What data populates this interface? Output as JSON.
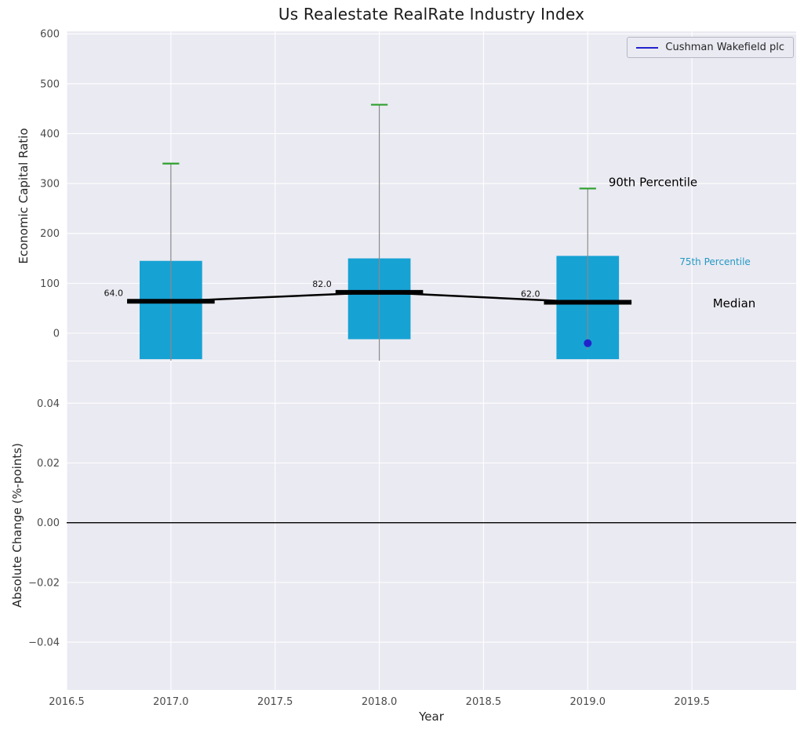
{
  "figure": {
    "title": "Us Realestate RealRate Industry Index",
    "colors": {
      "axes_background": "#eaeaf2",
      "grid": "#ffffff",
      "box_fill": "#17a2d4",
      "cap_green": "#2ca02c",
      "whisker_gray": "#8a8a8a",
      "median_black": "#000000",
      "company_blue": "#2222cc",
      "p75_text": "#2499c4",
      "tick_text": "#4a4a4a"
    }
  },
  "chart_data": [
    {
      "type": "boxplot",
      "title": "Us Realestate RealRate Industry Index",
      "ylabel": "Economic Capital Ratio",
      "xlabel": "",
      "xlim": [
        2016.5,
        2020.0
      ],
      "ylim": [
        -55,
        605
      ],
      "grid": true,
      "legend": {
        "label": "Cushman Wakefield plc",
        "position": "upper right"
      },
      "yticks": {
        "values": [
          0,
          100,
          200,
          300,
          400,
          500,
          600
        ],
        "labels": [
          "0",
          "100",
          "200",
          "300",
          "400",
          "500",
          "600"
        ]
      },
      "xticks": {
        "values": [
          2016.5,
          2017.0,
          2017.5,
          2018.0,
          2018.5,
          2019.0,
          2019.5
        ],
        "labels": []
      },
      "box_width": 0.3,
      "cap_width": 0.08,
      "median_width": 0.42,
      "boxes": [
        {
          "year": 2017,
          "x": 2017.0,
          "q1": -52,
          "q3": 145,
          "median": 64.0,
          "median_label": "64.0",
          "p90": 340,
          "whisker_low": -55
        },
        {
          "year": 2018,
          "x": 2018.0,
          "q1": -12,
          "q3": 150,
          "median": 82.0,
          "median_label": "82.0",
          "p90": 458,
          "whisker_low": -55
        },
        {
          "year": 2019,
          "x": 2019.0,
          "q1": -52,
          "q3": 155,
          "median": 62.0,
          "median_label": "62.0",
          "p90": 290,
          "whisker_low": -33
        }
      ],
      "median_line": {
        "x": [
          2017,
          2018,
          2019
        ],
        "y": [
          64,
          82,
          62
        ]
      },
      "company_series": {
        "name": "Cushman Wakefield plc",
        "points": [
          {
            "x": 2019,
            "y": -20
          }
        ]
      },
      "annotations": [
        {
          "text": "90th Percentile",
          "x": 2019.1,
          "y": 295,
          "color": "#000000",
          "size": 15
        },
        {
          "text": "75th Percentile",
          "x": 2019.44,
          "y": 137,
          "color": "#2499c4",
          "size": 12
        },
        {
          "text": "Median",
          "x": 2019.6,
          "y": 52,
          "color": "#000000",
          "size": 15
        }
      ]
    },
    {
      "type": "line",
      "ylabel": "Absolute Change (%-points)",
      "xlabel": "Year",
      "xlim": [
        2016.5,
        2020.0
      ],
      "ylim": [
        -0.056,
        0.054
      ],
      "grid": true,
      "series": [],
      "zero_line": 0.0,
      "yticks": {
        "values": [
          -0.04,
          -0.02,
          0,
          0.02,
          0.04
        ],
        "labels": [
          "−0.04",
          "−0.02",
          "0.00",
          "0.02",
          "0.04"
        ]
      },
      "xticks": {
        "values": [
          2016.5,
          2017.0,
          2017.5,
          2018.0,
          2018.5,
          2019.0,
          2019.5
        ],
        "labels": [
          "2016.5",
          "2017.0",
          "2017.5",
          "2018.0",
          "2018.5",
          "2019.0",
          "2019.5"
        ]
      }
    }
  ]
}
